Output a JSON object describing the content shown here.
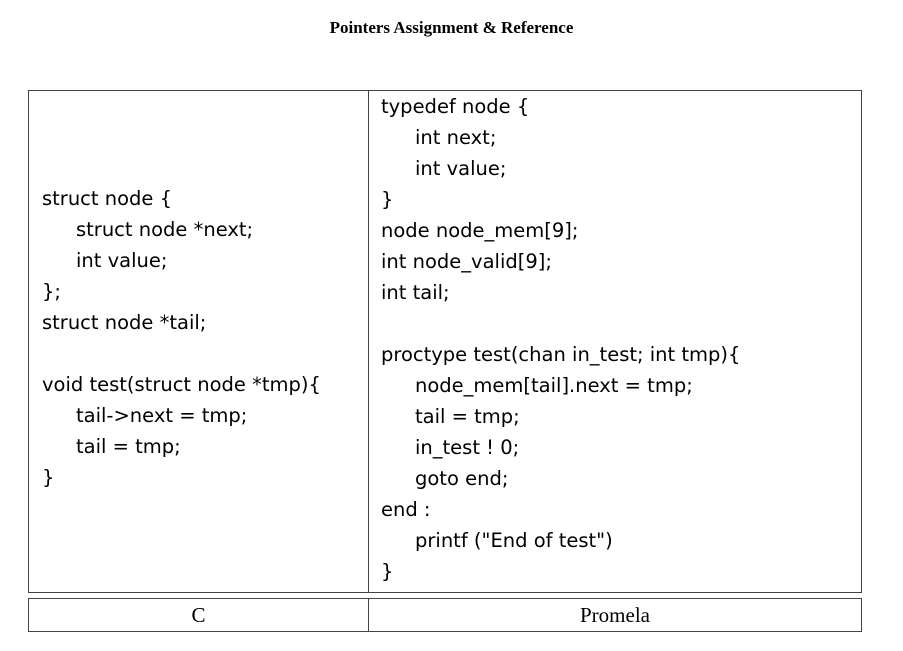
{
  "title": "Pointers Assignment & Reference",
  "c_code": [
    {
      "text": "struct node {",
      "indent": 0
    },
    {
      "text": "struct node *next;",
      "indent": 1
    },
    {
      "text": "int value;",
      "indent": 1
    },
    {
      "text": "};",
      "indent": 0
    },
    {
      "text": "struct node *tail;",
      "indent": 0
    },
    {
      "text": "",
      "indent": 0
    },
    {
      "text": "void test(struct node *tmp){",
      "indent": 0
    },
    {
      "text": "tail->next = tmp;",
      "indent": 1
    },
    {
      "text": "tail = tmp;",
      "indent": 1
    },
    {
      "text": "}",
      "indent": 0
    }
  ],
  "promela_code": [
    {
      "text": "typedef node {",
      "indent": 0
    },
    {
      "text": "int next;",
      "indent": 1
    },
    {
      "text": "int value;",
      "indent": 1
    },
    {
      "text": "}",
      "indent": 0
    },
    {
      "text": "node node_mem[9];",
      "indent": 0
    },
    {
      "text": "int node_valid[9];",
      "indent": 0
    },
    {
      "text": "int tail;",
      "indent": 0
    },
    {
      "text": "",
      "indent": 0
    },
    {
      "text": "proctype test(chan in_test; int tmp){",
      "indent": 0
    },
    {
      "text": "node_mem[tail].next = tmp;",
      "indent": 1
    },
    {
      "text": "tail = tmp;",
      "indent": 1
    },
    {
      "text": "in_test ! 0;",
      "indent": 1
    },
    {
      "text": "goto end;",
      "indent": 1
    },
    {
      "text": "end :",
      "indent": 0
    },
    {
      "text": "printf (\"End of test\")",
      "indent": 1
    },
    {
      "text": "}",
      "indent": 0
    }
  ],
  "labels": {
    "c": "C",
    "promela": "Promela"
  }
}
